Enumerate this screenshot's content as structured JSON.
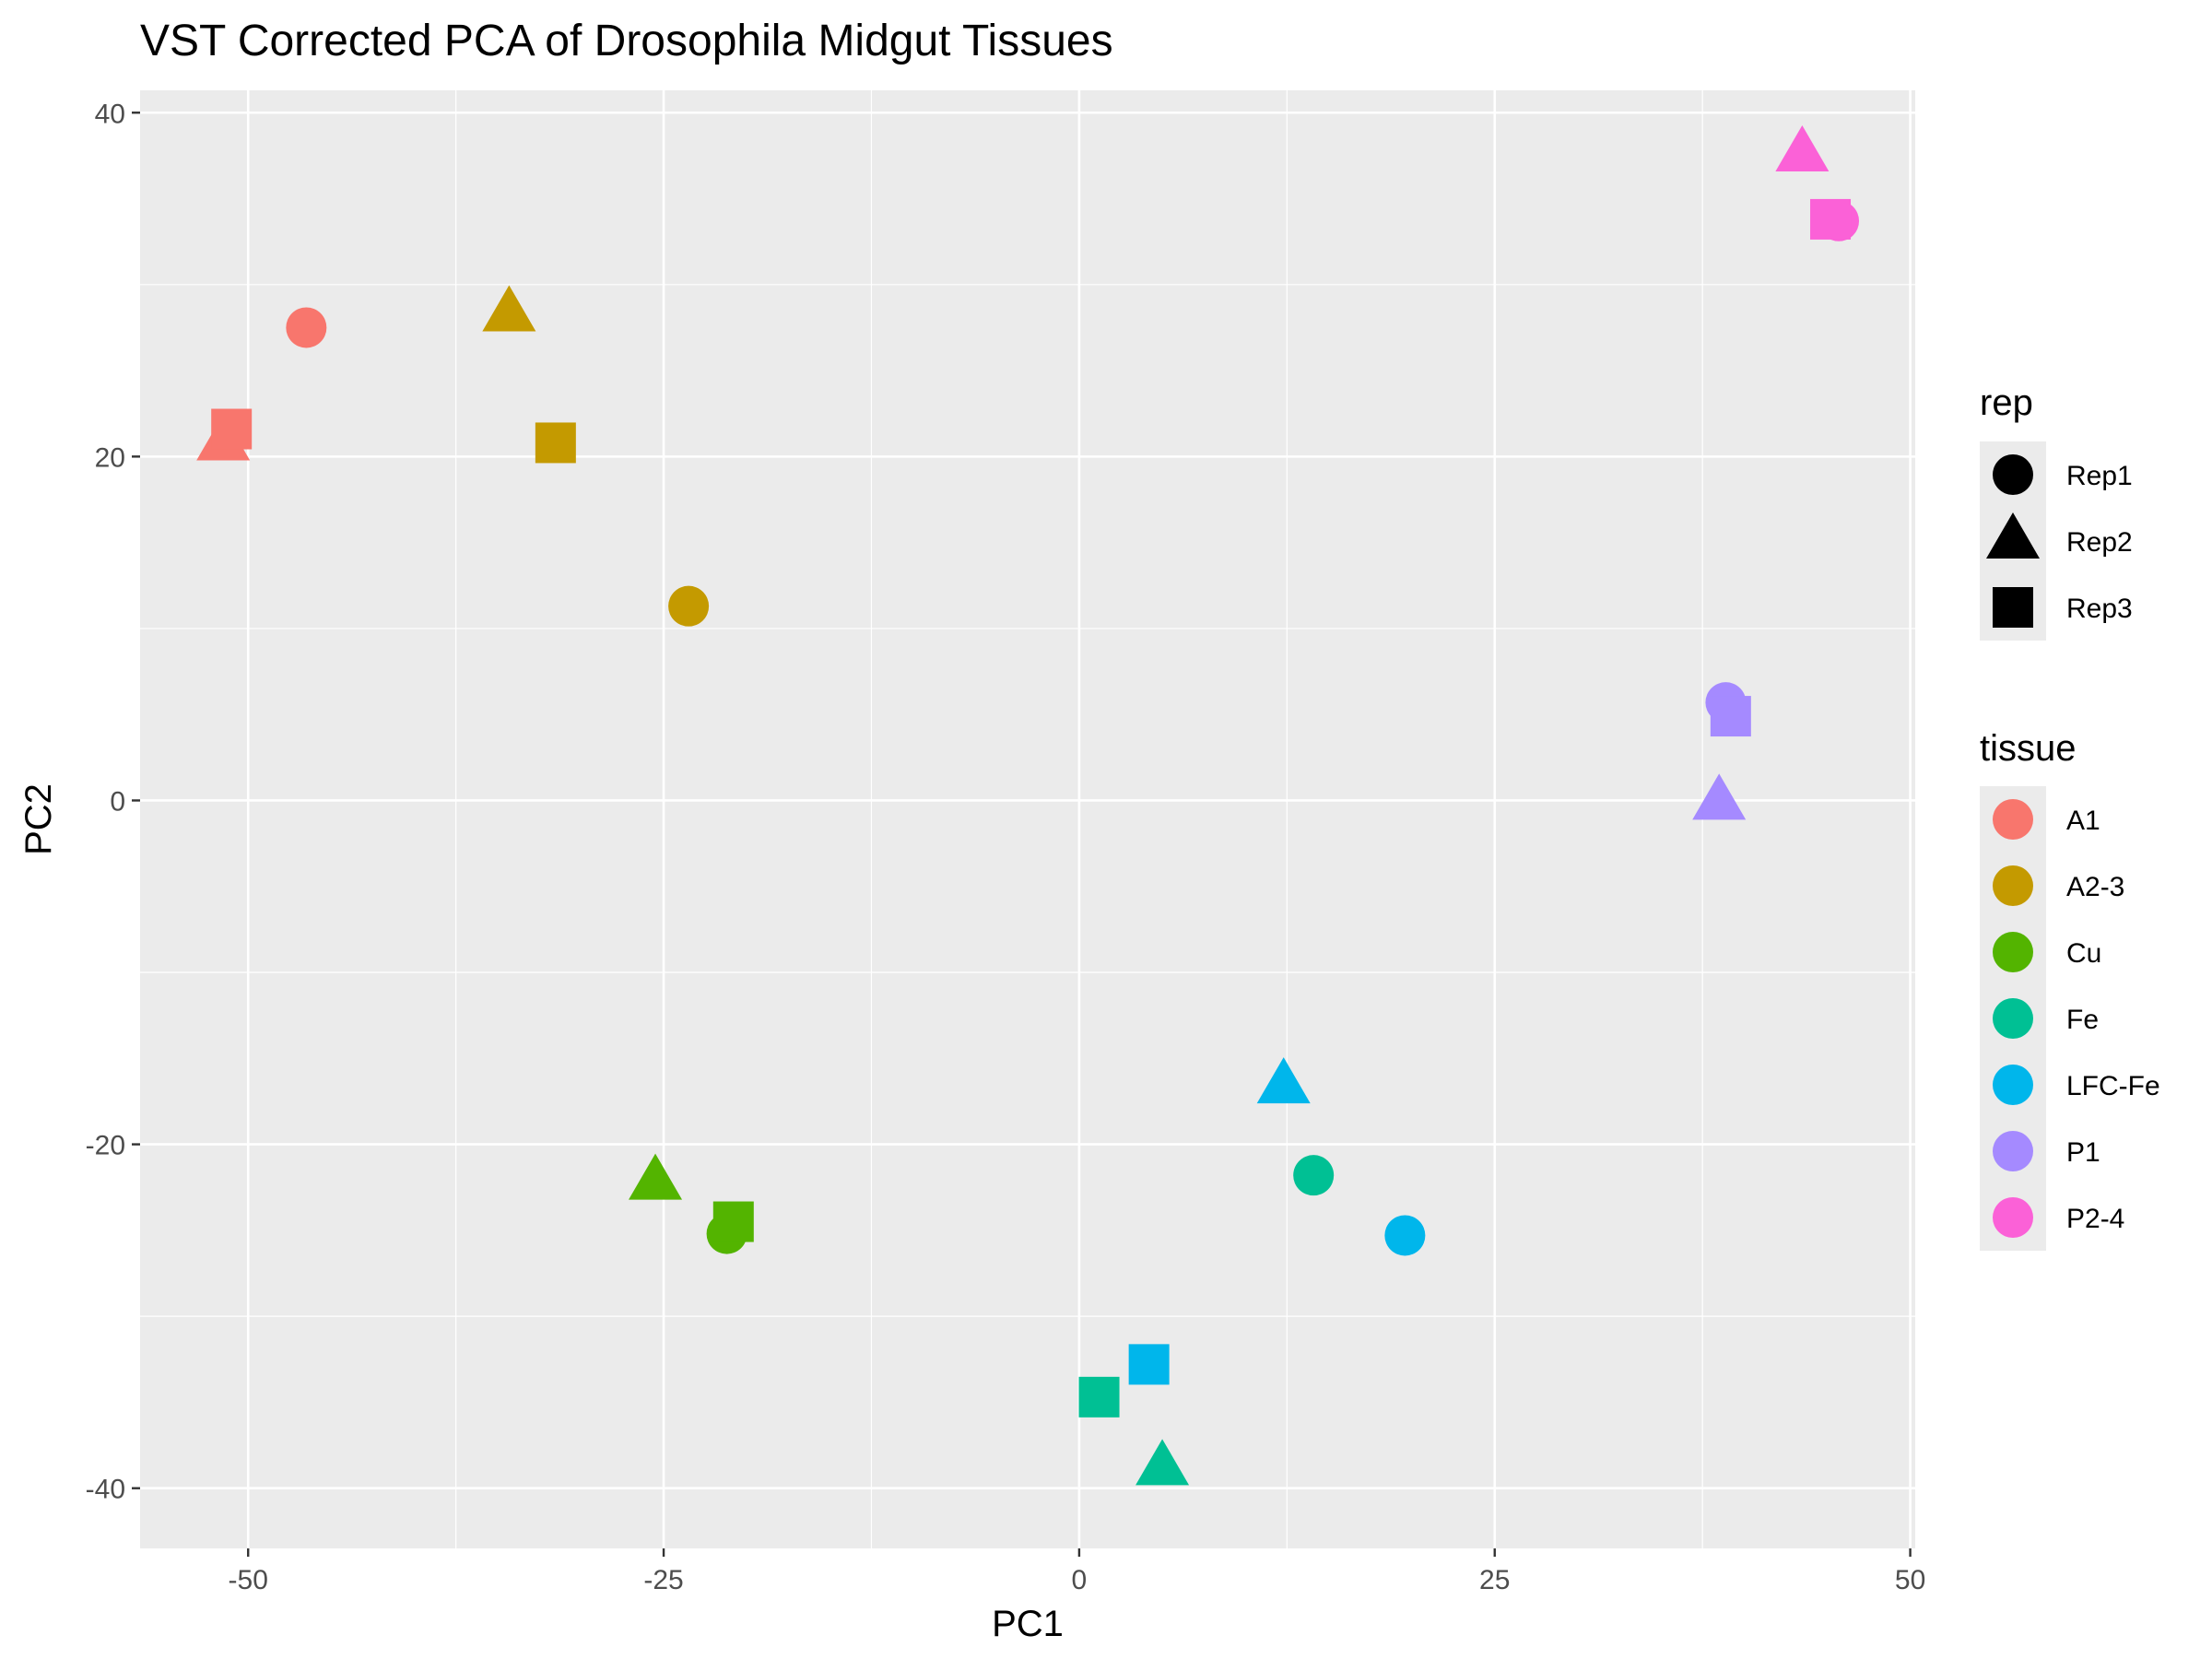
{
  "chart_data": {
    "type": "scatter",
    "title": "VST Corrected PCA of Drosophila Midgut Tissues",
    "xlabel": "PC1",
    "ylabel": "PC2",
    "xlim": [
      -56.5,
      50.3
    ],
    "ylim": [
      -43.5,
      41.3
    ],
    "x_ticks": [
      -50,
      -25,
      0,
      25,
      50
    ],
    "y_ticks": [
      40,
      20,
      0,
      -20,
      -40
    ],
    "x_tick_labels": [
      "-50",
      "-25",
      "0",
      "25",
      "50"
    ],
    "y_tick_labels": [
      "40",
      "20",
      "0",
      "-20",
      "-40"
    ],
    "grid": true,
    "panel_background": "#ebebeb",
    "grid_color": "#ffffff",
    "legend_position": "right",
    "legends": {
      "rep": {
        "title": "rep",
        "items": [
          {
            "label": "Rep1",
            "shape": "circle"
          },
          {
            "label": "Rep2",
            "shape": "triangle"
          },
          {
            "label": "Rep3",
            "shape": "square"
          }
        ]
      },
      "tissue": {
        "title": "tissue",
        "items": [
          {
            "label": "A1",
            "color": "#F8766D"
          },
          {
            "label": "A2-3",
            "color": "#C49A00"
          },
          {
            "label": "Cu",
            "color": "#53B400"
          },
          {
            "label": "Fe",
            "color": "#00C094"
          },
          {
            "label": "LFC-Fe",
            "color": "#00B6EB"
          },
          {
            "label": "P1",
            "color": "#A58AFF"
          },
          {
            "label": "P2-4",
            "color": "#FB61D7"
          }
        ]
      }
    },
    "points": [
      {
        "tissue": "A1",
        "rep": "Rep1",
        "x": -46.5,
        "y": 27.5
      },
      {
        "tissue": "A1",
        "rep": "Rep2",
        "x": -51.5,
        "y": 20.8
      },
      {
        "tissue": "A1",
        "rep": "Rep3",
        "x": -51.0,
        "y": 21.6
      },
      {
        "tissue": "A2-3",
        "rep": "Rep1",
        "x": -23.5,
        "y": 11.3
      },
      {
        "tissue": "A2-3",
        "rep": "Rep2",
        "x": -34.3,
        "y": 28.3
      },
      {
        "tissue": "A2-3",
        "rep": "Rep3",
        "x": -31.5,
        "y": 20.8
      },
      {
        "tissue": "Cu",
        "rep": "Rep1",
        "x": -21.2,
        "y": -25.2
      },
      {
        "tissue": "Cu",
        "rep": "Rep2",
        "x": -25.5,
        "y": -22.2
      },
      {
        "tissue": "Cu",
        "rep": "Rep3",
        "x": -20.8,
        "y": -24.5
      },
      {
        "tissue": "Fe",
        "rep": "Rep1",
        "x": 14.1,
        "y": -21.8
      },
      {
        "tissue": "Fe",
        "rep": "Rep2",
        "x": 5.0,
        "y": -38.8
      },
      {
        "tissue": "Fe",
        "rep": "Rep3",
        "x": 1.2,
        "y": -34.7
      },
      {
        "tissue": "LFC-Fe",
        "rep": "Rep1",
        "x": 19.6,
        "y": -25.3
      },
      {
        "tissue": "LFC-Fe",
        "rep": "Rep2",
        "x": 12.3,
        "y": -16.6
      },
      {
        "tissue": "LFC-Fe",
        "rep": "Rep3",
        "x": 4.2,
        "y": -32.8
      },
      {
        "tissue": "P1",
        "rep": "Rep1",
        "x": 38.9,
        "y": 5.7
      },
      {
        "tissue": "P1",
        "rep": "Rep2",
        "x": 38.5,
        "y": -0.1
      },
      {
        "tissue": "P1",
        "rep": "Rep3",
        "x": 39.2,
        "y": 4.9
      },
      {
        "tissue": "P2-4",
        "rep": "Rep1",
        "x": 45.7,
        "y": 33.7
      },
      {
        "tissue": "P2-4",
        "rep": "Rep2",
        "x": 43.5,
        "y": 37.6
      },
      {
        "tissue": "P2-4",
        "rep": "Rep3",
        "x": 45.2,
        "y": 33.8
      }
    ]
  }
}
